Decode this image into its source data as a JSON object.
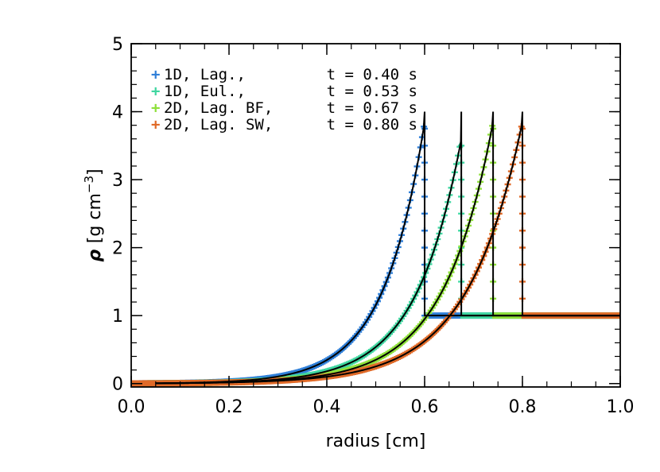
{
  "chart_data": {
    "type": "scatter",
    "title": "",
    "xlabel": "radius [cm]",
    "ylabel_symbol": "ρ",
    "ylabel_units": "[g cm",
    "ylabel_exponent": "−3",
    "ylabel_close": "]",
    "xlim": [
      0.0,
      1.0
    ],
    "ylim": [
      -0.05,
      5.0
    ],
    "xticks": [
      0.0,
      0.2,
      0.4,
      0.6,
      0.8,
      1.0
    ],
    "xtick_labels": [
      "0.0",
      "0.2",
      "0.4",
      "0.6",
      "0.8",
      "1.0"
    ],
    "yticks": [
      0,
      1,
      2,
      3,
      4,
      5
    ],
    "ytick_labels": [
      "0",
      "1",
      "2",
      "3",
      "4",
      "5"
    ],
    "grid": false,
    "legend_position": "top-left",
    "series": [
      {
        "name": "1D, Lag., t = 0.40 s",
        "legend_marker": "+",
        "label_a": "1D, Lag.,",
        "label_b": "t = 0.40 s",
        "color": "#2f7fd8",
        "time": 0.4,
        "shock_radius": 0.6,
        "peak": 3.85,
        "scale": 0.083
      },
      {
        "name": "1D, Eul., t = 0.53 s",
        "legend_marker": "+",
        "label_a": "1D, Eul.,",
        "label_b": "t = 0.53 s",
        "color": "#3fd6a0",
        "time": 0.53,
        "shock_radius": 0.675,
        "peak": 3.6,
        "scale": 0.092
      },
      {
        "name": "2D, Lag. BF, t = 0.67 s",
        "legend_marker": "+",
        "label_a": "2D, Lag. BF,",
        "label_b": "t = 0.67 s",
        "color": "#8ee03a",
        "time": 0.67,
        "shock_radius": 0.74,
        "peak": 3.85,
        "scale": 0.1
      },
      {
        "name": "2D, Lag. SW, t = 0.80 s",
        "legend_marker": "+",
        "label_a": "2D, Lag. SW,",
        "label_b": "t = 0.80 s",
        "color": "#e06a28",
        "time": 0.8,
        "shock_radius": 0.8,
        "peak": 3.85,
        "scale": 0.11
      }
    ],
    "analytic_color": "#000000",
    "ambient_density": 1.0
  }
}
